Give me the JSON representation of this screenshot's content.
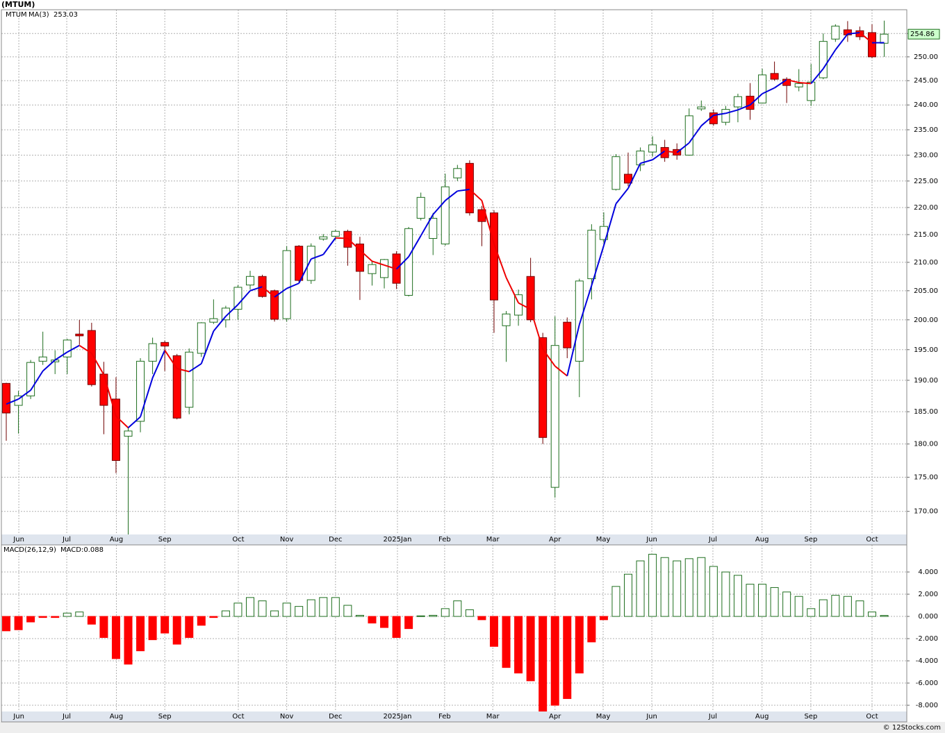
{
  "credit": "© 12Stocks.com",
  "chart_data": [
    {
      "type": "candlestick",
      "title": "(MTUM)",
      "log_scale": true,
      "grid": true,
      "x": [
        0,
        1,
        2,
        3,
        4,
        5,
        6,
        7,
        8,
        9,
        10,
        11,
        12,
        13,
        14,
        15,
        16,
        17,
        18,
        19,
        20,
        21,
        22,
        23,
        24,
        25,
        26,
        27,
        28,
        29,
        30,
        31,
        32,
        33,
        34,
        35,
        36,
        37,
        38,
        39,
        40,
        41,
        42,
        43,
        44,
        45,
        46,
        47,
        48,
        49,
        50,
        51,
        52,
        53,
        54,
        55,
        56,
        57,
        58,
        59,
        60,
        61,
        62,
        63,
        64,
        65,
        66,
        67,
        68,
        69,
        70,
        71,
        72
      ],
      "xlim": [
        -0.4,
        73.85
      ],
      "xticks": [
        {
          "value": 1.03,
          "label": "Jun"
        },
        {
          "value": 4.96,
          "label": "Jul"
        },
        {
          "value": 9.03,
          "label": "Aug"
        },
        {
          "value": 13.0,
          "label": "Sep"
        },
        {
          "value": 19.03,
          "label": "Oct"
        },
        {
          "value": 23.0,
          "label": "Nov"
        },
        {
          "value": 27.0,
          "label": "Dec"
        },
        {
          "value": 32.08,
          "label": "2025Jan"
        },
        {
          "value": 35.95,
          "label": "Feb"
        },
        {
          "value": 39.9,
          "label": "Mar"
        },
        {
          "value": 45.0,
          "label": "Apr"
        },
        {
          "value": 48.95,
          "label": "May"
        },
        {
          "value": 52.94,
          "label": "Jun"
        },
        {
          "value": 57.95,
          "label": "Jul"
        },
        {
          "value": 61.98,
          "label": "Aug"
        },
        {
          "value": 65.98,
          "label": "Sep"
        },
        {
          "value": 71.0,
          "label": "Oct"
        }
      ],
      "ylim": [
        166.7,
        260.2
      ],
      "yticks": [
        {
          "value": 170,
          "label": "170.00"
        },
        {
          "value": 175,
          "label": "175.00"
        },
        {
          "value": 180,
          "label": "180.00"
        },
        {
          "value": 185,
          "label": "185.00"
        },
        {
          "value": 190,
          "label": "190.00"
        },
        {
          "value": 195,
          "label": "195.00"
        },
        {
          "value": 200,
          "label": "200.00"
        },
        {
          "value": 205,
          "label": "205.00"
        },
        {
          "value": 210,
          "label": "210.00"
        },
        {
          "value": 215,
          "label": "215.00"
        },
        {
          "value": 220,
          "label": "220.00"
        },
        {
          "value": 225,
          "label": "225.00"
        },
        {
          "value": 230,
          "label": "230.00"
        },
        {
          "value": 235,
          "label": "235.00"
        },
        {
          "value": 240,
          "label": "240.00"
        },
        {
          "value": 245,
          "label": "245.00"
        },
        {
          "value": 250,
          "label": "250.00"
        },
        {
          "value": 255,
          "label": "255.00"
        }
      ],
      "series": [
        {
          "name": "MTUM",
          "up_color": "#1e6e1e",
          "down_color": "#ff0000",
          "open": [
            189.5,
            186,
            187.5,
            193.1,
            193.0,
            193.8,
            197.6,
            198.2,
            191,
            187,
            181.2,
            183.5,
            193.1,
            196.2,
            194,
            185.7,
            194.4,
            199.6,
            200,
            201.8,
            206,
            207.5,
            205,
            200.2,
            212.9,
            206.8,
            214.2,
            214.7,
            215.6,
            213.3,
            208,
            207.3,
            211.5,
            204.2,
            218,
            214.3,
            213.3,
            225.6,
            228.4,
            219.6,
            219,
            199,
            200.8,
            207.5,
            197,
            173.5,
            199.6,
            193.1,
            207.1,
            214.1,
            223.4,
            226.3,
            228.1,
            230.6,
            231.5,
            231.1,
            230,
            239.2,
            238.4,
            236.5,
            239.6,
            241.8,
            240.4,
            246.5,
            245.3,
            243.7,
            240.9,
            245.6,
            253.8,
            255.8,
            255.6,
            255.2,
            252.9
          ],
          "high": [
            189.6,
            188.3,
            193.3,
            198,
            194.9,
            196.8,
            200,
            199.5,
            193,
            190.5,
            182.5,
            193.6,
            197,
            196.5,
            194.3,
            195.2,
            199.6,
            203.5,
            202.4,
            206,
            208.5,
            207.8,
            205.2,
            212.9,
            213.1,
            213.4,
            215.1,
            215.9,
            215.9,
            214.6,
            210.3,
            210.6,
            212,
            216.4,
            222.8,
            219,
            226.4,
            228.1,
            229,
            220.3,
            219.5,
            201.5,
            205.2,
            210.8,
            197.8,
            200.6,
            200.4,
            207.1,
            216.9,
            219.1,
            230.2,
            230.5,
            231.5,
            233.7,
            233,
            232.3,
            239.3,
            240.9,
            239.1,
            239.8,
            242.3,
            244.5,
            247.5,
            249,
            245.7,
            247.4,
            248.5,
            255,
            257,
            257.7,
            256.5,
            257,
            257.8
          ],
          "low": [
            180.5,
            181.6,
            187,
            192.5,
            191,
            191,
            195.8,
            189,
            181.5,
            175.6,
            165,
            181.8,
            191,
            191.5,
            183.8,
            184.6,
            193.8,
            199.3,
            198.7,
            200,
            205.2,
            203.8,
            199.7,
            199.7,
            206.5,
            206.2,
            213.9,
            214,
            209.4,
            203.4,
            205.9,
            205.4,
            205.3,
            204,
            217.6,
            211.3,
            213,
            225,
            218.5,
            212.9,
            197.8,
            193,
            199,
            199.6,
            180,
            172,
            193.6,
            187.3,
            203.5,
            213.5,
            223.2,
            224,
            226.9,
            229.7,
            228.7,
            229.1,
            229.9,
            238.8,
            235.8,
            235.9,
            236.5,
            237,
            240.3,
            245,
            240.4,
            242.8,
            239.8,
            245.3,
            253.2,
            253.2,
            253.6,
            249.7,
            250
          ],
          "close": [
            184.8,
            187.5,
            192.9,
            193.8,
            193.3,
            196.6,
            197.3,
            189.3,
            186,
            177.5,
            182,
            193.1,
            196,
            195.6,
            184,
            194.6,
            199.5,
            200.2,
            202,
            205.6,
            207.5,
            204,
            200.1,
            212.1,
            206.8,
            212.9,
            214.6,
            215.6,
            212.7,
            208.4,
            209.6,
            210.5,
            206.3,
            216.1,
            221.9,
            218,
            223.9,
            227.4,
            219,
            217.4,
            203.4,
            201,
            204.3,
            200,
            181,
            195.7,
            195.3,
            206.7,
            215.8,
            216.5,
            229.7,
            224.6,
            230.8,
            232,
            229.5,
            230,
            237.8,
            239.6,
            236.2,
            239.1,
            241.7,
            239.1,
            246.2,
            245.3,
            244,
            244.4,
            244.7,
            253.3,
            256.6,
            254.7,
            254.3,
            250,
            254.86
          ]
        },
        {
          "name": "MA(3)",
          "up_color": "#0000dd",
          "down_color": "#ee0000",
          "last": 253.03,
          "values": [
            186.2,
            187,
            188.4,
            191.5,
            193.3,
            194.6,
            195.7,
            194.4,
            190.9,
            184.3,
            182.5,
            184.2,
            190.4,
            194.9,
            191.9,
            191.4,
            192.7,
            198.1,
            200.6,
            202.6,
            205,
            205.7,
            203.9,
            205.4,
            206.3,
            210.6,
            211.4,
            214.4,
            214.3,
            212.2,
            210.2,
            209.5,
            208.8,
            211,
            214.8,
            218.7,
            221.3,
            223.1,
            223.4,
            221.3,
            213.3,
            207.3,
            202.9,
            201.8,
            195.1,
            192.3,
            190.7,
            199.2,
            205.9,
            213,
            220.7,
            223.6,
            228.4,
            229.1,
            230.8,
            230.5,
            232.4,
            235.8,
            237.9,
            238.3,
            239,
            240,
            242.3,
            243.5,
            245.2,
            244.6,
            244.4,
            247.5,
            251.5,
            254.9,
            255.2,
            253,
            253.03
          ]
        }
      ]
    },
    {
      "type": "bar",
      "title": "MACD(26,12,9)",
      "grid": true,
      "x": [
        0,
        1,
        2,
        3,
        4,
        5,
        6,
        7,
        8,
        9,
        10,
        11,
        12,
        13,
        14,
        15,
        16,
        17,
        18,
        19,
        20,
        21,
        22,
        23,
        24,
        25,
        26,
        27,
        28,
        29,
        30,
        31,
        32,
        33,
        34,
        35,
        36,
        37,
        38,
        39,
        40,
        41,
        42,
        43,
        44,
        45,
        46,
        47,
        48,
        49,
        50,
        51,
        52,
        53,
        54,
        55,
        56,
        57,
        58,
        59,
        60,
        61,
        62,
        63,
        64,
        65,
        66,
        67,
        68,
        69,
        70,
        71,
        72
      ],
      "xlim": [
        -0.4,
        73.85
      ],
      "xticks": [
        {
          "value": 1.03,
          "label": "Jun"
        },
        {
          "value": 4.96,
          "label": "Jul"
        },
        {
          "value": 9.03,
          "label": "Aug"
        },
        {
          "value": 13.0,
          "label": "Sep"
        },
        {
          "value": 19.03,
          "label": "Oct"
        },
        {
          "value": 23.0,
          "label": "Nov"
        },
        {
          "value": 27.0,
          "label": "Dec"
        },
        {
          "value": 32.08,
          "label": "2025Jan"
        },
        {
          "value": 35.95,
          "label": "Feb"
        },
        {
          "value": 39.9,
          "label": "Mar"
        },
        {
          "value": 45.0,
          "label": "Apr"
        },
        {
          "value": 48.95,
          "label": "May"
        },
        {
          "value": 52.94,
          "label": "Jun"
        },
        {
          "value": 57.95,
          "label": "Jul"
        },
        {
          "value": 61.98,
          "label": "Aug"
        },
        {
          "value": 65.98,
          "label": "Sep"
        },
        {
          "value": 71.0,
          "label": "Oct"
        }
      ],
      "ylim": [
        -8.56,
        6.44
      ],
      "yticks": [
        {
          "value": -8,
          "label": "-8.000"
        },
        {
          "value": -6,
          "label": "-6.000"
        },
        {
          "value": -4,
          "label": "-4.000"
        },
        {
          "value": -2,
          "label": "-2.000"
        },
        {
          "value": 0,
          "label": "0.000"
        },
        {
          "value": 2,
          "label": "2.000"
        },
        {
          "value": 4,
          "label": "4.000"
        }
      ],
      "series": [
        {
          "name": "MACD:0.088",
          "up_color": "#1e6e1e",
          "down_color": "#ff0000",
          "values": [
            -1.3,
            -1.2,
            -0.5,
            -0.1,
            -0.1,
            0.3,
            0.4,
            -0.7,
            -1.9,
            -3.8,
            -4.3,
            -3.1,
            -2.1,
            -1.5,
            -2.5,
            -1.9,
            -0.8,
            -0.1,
            0.5,
            1.2,
            1.7,
            1.4,
            0.5,
            1.2,
            0.9,
            1.5,
            1.7,
            1.7,
            1.0,
            0.1,
            -0.6,
            -1.0,
            -1.9,
            -1.1,
            0.05,
            0.1,
            0.7,
            1.4,
            0.6,
            -0.3,
            -2.7,
            -4.6,
            -5.1,
            -5.8,
            -8.7,
            -8.0,
            -7.4,
            -5.1,
            -2.3,
            -0.3,
            2.7,
            3.8,
            5.0,
            5.6,
            5.3,
            5.0,
            5.2,
            5.3,
            4.5,
            4.0,
            3.7,
            2.9,
            2.9,
            2.6,
            2.2,
            1.8,
            0.7,
            1.5,
            1.9,
            1.8,
            1.4,
            0.4,
            0.088
          ]
        }
      ]
    }
  ]
}
